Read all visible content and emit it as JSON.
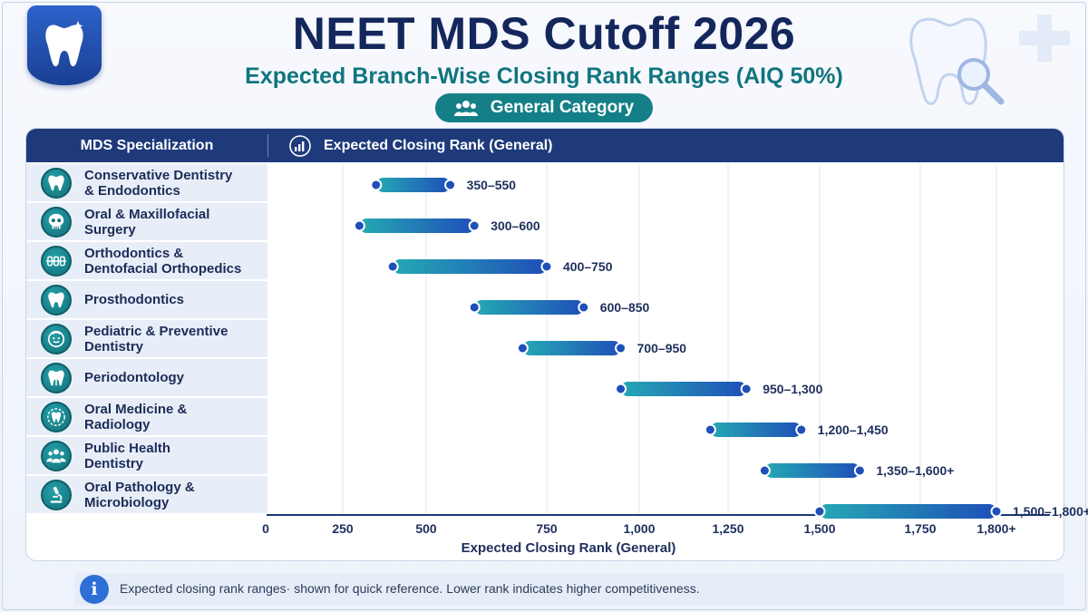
{
  "header": {
    "title": "NEET MDS Cutoff 2026",
    "subtitle": "Expected Branch-Wise Closing Rank Ranges (AIQ 50%)",
    "category_pill": "General Category"
  },
  "table": {
    "left_header": "MDS Specialization",
    "right_header": "Expected Closing Rank (General)"
  },
  "specializations": [
    {
      "label": "Conservative Dentistry\n& Endodontics",
      "icon": "tooth-icon"
    },
    {
      "label": "Oral & Maxillofacial\nSurgery",
      "icon": "skull-icon"
    },
    {
      "label": "Orthodontics &\nDentofacial Orthopedics",
      "icon": "braces-icon"
    },
    {
      "label": "Prosthodontics",
      "icon": "tooth-icon"
    },
    {
      "label": "Pediatric & Preventive\nDentistry",
      "icon": "child-face-icon"
    },
    {
      "label": "Periodontology",
      "icon": "tooth-roots-icon"
    },
    {
      "label": "Oral Medicine &\nRadiology",
      "icon": "tooth-scan-icon"
    },
    {
      "label": "Public Health\nDentistry",
      "icon": "people-icon"
    },
    {
      "label": "Oral Pathology &\nMicrobiology",
      "icon": "microscope-icon"
    }
  ],
  "footer": {
    "note": "Expected closing rank ranges· shown for quick reference. Lower rank indicates higher competitiveness."
  },
  "colors": {
    "navy": "#1e3a7b",
    "teal": "#147f86",
    "bar_start": "#25a9b4",
    "bar_end": "#1f4fb8"
  },
  "chart_data": {
    "type": "bar",
    "orientation": "horizontal-range",
    "xlabel": "Expected Closing Rank (General)",
    "x_ticks": [
      {
        "value": 0,
        "label": "0"
      },
      {
        "value": 250,
        "label": "250"
      },
      {
        "value": 500,
        "label": "500"
      },
      {
        "value": 750,
        "label": "750"
      },
      {
        "value": 1000,
        "label": "1,000"
      },
      {
        "value": 1250,
        "label": "1,250"
      },
      {
        "value": 1500,
        "label": "1,500"
      },
      {
        "value": 1750,
        "label": "1,750"
      },
      {
        "value": 1800,
        "label": "1,800+"
      }
    ],
    "grid": true,
    "categories": [
      "Conservative Dentistry & Endodontics",
      "Oral & Maxillofacial Surgery",
      "Orthodontics & Dentofacial Orthopedics",
      "Prosthodontics",
      "Pediatric & Preventive Dentistry",
      "Periodontology",
      "Oral Medicine & Radiology",
      "Public Health Dentistry",
      "Oral Pathology & Microbiology"
    ],
    "ranges": [
      {
        "low": 350,
        "high": 550,
        "label": "350–550"
      },
      {
        "low": 300,
        "high": 600,
        "label": "300–600"
      },
      {
        "low": 400,
        "high": 750,
        "label": "400–750"
      },
      {
        "low": 600,
        "high": 850,
        "label": "600–850"
      },
      {
        "low": 700,
        "high": 950,
        "label": "700–950"
      },
      {
        "low": 950,
        "high": 1300,
        "label": "950–1,300"
      },
      {
        "low": 1200,
        "high": 1450,
        "label": "1,200–1,450"
      },
      {
        "low": 1350,
        "high": 1600,
        "label": "1,350–1,600+"
      },
      {
        "low": 1500,
        "high": 1800,
        "label": "1,500–1,800+"
      }
    ]
  }
}
